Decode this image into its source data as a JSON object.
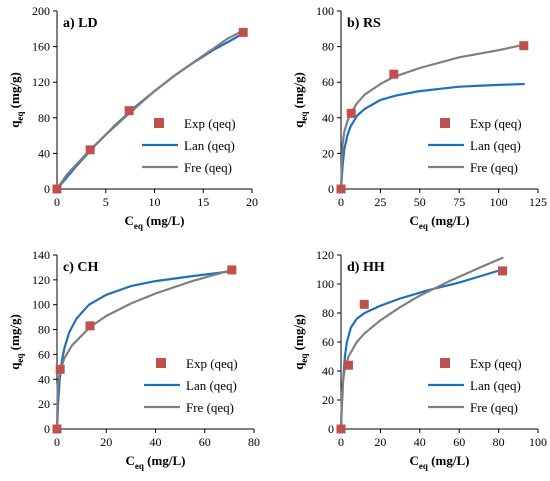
{
  "chart_data": [
    {
      "type": "scatter",
      "title": "a) LD",
      "xlabel_base": "C",
      "xlabel_sub": "eq",
      "xlabel_unit": " (mg/L)",
      "ylabel_base": "q",
      "ylabel_sub": "eq",
      "ylabel_unit": " (mg/g)",
      "xlim": [
        0,
        20
      ],
      "xticks": [
        0,
        5,
        10,
        15,
        20
      ],
      "ylim": [
        0,
        200
      ],
      "yticks": [
        0,
        40,
        80,
        120,
        160,
        200
      ],
      "grid": false,
      "legend_position": "bottom-right",
      "series": [
        {
          "name": "Exp (qeq)",
          "kind": "markers",
          "color": "#c0504d",
          "x": [
            0,
            3.4,
            7.4,
            19.1
          ],
          "y": [
            0,
            44,
            88,
            176
          ]
        },
        {
          "name": "Lan (qeq)",
          "kind": "line",
          "color": "#1f6fbf",
          "x": [
            0,
            2,
            4,
            6,
            8,
            10,
            12,
            14,
            16,
            18,
            19.1
          ],
          "y": [
            0,
            26,
            50,
            72,
            92,
            110,
            127,
            142,
            156,
            168,
            175
          ]
        },
        {
          "name": "Fre (qeq)",
          "kind": "line",
          "color": "#7f7f7f",
          "x": [
            0,
            1,
            3.4,
            5,
            7.4,
            10,
            12.5,
            15,
            17.5,
            19.1
          ],
          "y": [
            0,
            16,
            44,
            61,
            85,
            110,
            131,
            150,
            169,
            178
          ]
        }
      ]
    },
    {
      "type": "scatter",
      "title": "b) RS",
      "xlabel_base": "C",
      "xlabel_sub": "eq",
      "xlabel_unit": " (mg/L)",
      "ylabel_base": "q",
      "ylabel_sub": "eq",
      "ylabel_unit": " (mg/g)",
      "xlim": [
        0,
        125
      ],
      "xticks": [
        0,
        25,
        50,
        75,
        100,
        125
      ],
      "ylim": [
        0,
        100
      ],
      "yticks": [
        0,
        20,
        40,
        60,
        80,
        100
      ],
      "grid": false,
      "legend_position": "bottom-right",
      "series": [
        {
          "name": "Exp (qeq)",
          "kind": "markers",
          "color": "#c0504d",
          "x": [
            0,
            6.5,
            33.5,
            116
          ],
          "y": [
            0,
            42.5,
            64.5,
            80.5
          ]
        },
        {
          "name": "Lan (qeq)",
          "kind": "line",
          "color": "#1f6fbf",
          "x": [
            0,
            1,
            2,
            4,
            6,
            10,
            15,
            25,
            35,
            50,
            75,
            100,
            116
          ],
          "y": [
            0,
            13,
            22,
            30,
            35,
            41,
            45,
            50,
            52.5,
            55,
            57.5,
            58.5,
            59
          ]
        },
        {
          "name": "Fre (qeq)",
          "kind": "line",
          "color": "#7f7f7f",
          "x": [
            0,
            1,
            2,
            4,
            6.5,
            10,
            15,
            25,
            33.5,
            50,
            75,
            100,
            116
          ],
          "y": [
            0,
            25,
            32,
            38,
            43,
            48,
            53,
            59,
            63,
            68,
            74,
            78,
            81
          ]
        }
      ]
    },
    {
      "type": "scatter",
      "title": "c) CH",
      "xlabel_base": "C",
      "xlabel_sub": "eq",
      "xlabel_unit": " (mg/L)",
      "ylabel_base": "q",
      "ylabel_sub": "eq",
      "ylabel_unit": " (mg/g)",
      "xlim": [
        0,
        80
      ],
      "xticks": [
        0,
        20,
        40,
        60,
        80
      ],
      "ylim": [
        0,
        140
      ],
      "yticks": [
        0,
        20,
        40,
        60,
        80,
        100,
        120,
        140
      ],
      "grid": false,
      "legend_position": "bottom-right",
      "series": [
        {
          "name": "Exp (qeq)",
          "kind": "markers",
          "color": "#c0504d",
          "x": [
            0,
            1.3,
            13.4,
            71
          ],
          "y": [
            0,
            48,
            83,
            128
          ]
        },
        {
          "name": "Lan (qeq)",
          "kind": "line",
          "color": "#1f6fbf",
          "x": [
            0,
            0.5,
            1,
            2,
            3,
            5,
            8,
            13,
            20,
            30,
            40,
            55,
            71
          ],
          "y": [
            0,
            22,
            38,
            55,
            65,
            78,
            89,
            100,
            108,
            115,
            119,
            123,
            127
          ]
        },
        {
          "name": "Fre (qeq)",
          "kind": "line",
          "color": "#7f7f7f",
          "x": [
            0,
            0.3,
            1.3,
            3,
            6,
            13.4,
            20,
            30,
            40,
            55,
            71
          ],
          "y": [
            0,
            35,
            47,
            57,
            67,
            82,
            91,
            101,
            109,
            119,
            128
          ]
        }
      ]
    },
    {
      "type": "scatter",
      "title": "d) HH",
      "xlabel_base": "C",
      "xlabel_sub": "eq",
      "xlabel_unit": " (mg/L)",
      "ylabel_base": "q",
      "ylabel_sub": "eq",
      "ylabel_unit": " (mg/g)",
      "xlim": [
        0,
        100
      ],
      "xticks": [
        0,
        20,
        40,
        60,
        80,
        100
      ],
      "ylim": [
        0,
        120
      ],
      "yticks": [
        0,
        20,
        40,
        60,
        80,
        100,
        120
      ],
      "grid": false,
      "legend_position": "bottom-right",
      "series": [
        {
          "name": "Exp (qeq)",
          "kind": "markers",
          "color": "#c0504d",
          "x": [
            0,
            3.8,
            11.8,
            82
          ],
          "y": [
            0,
            44,
            86,
            109
          ]
        },
        {
          "name": "Lan (qeq)",
          "kind": "line",
          "color": "#1f6fbf",
          "x": [
            0,
            0.5,
            1,
            2,
            3,
            5,
            8,
            12,
            20,
            30,
            45,
            60,
            82
          ],
          "y": [
            0,
            18,
            32,
            50,
            60,
            70,
            76,
            80,
            85,
            90,
            96,
            101,
            110
          ]
        },
        {
          "name": "Fre (qeq)",
          "kind": "line",
          "color": "#7f7f7f",
          "x": [
            0,
            0.5,
            1,
            2,
            3.8,
            8,
            12,
            20,
            30,
            40,
            55,
            70,
            82
          ],
          "y": [
            0,
            25,
            33,
            42,
            50,
            60,
            66,
            75,
            84,
            92,
            102,
            111,
            118
          ]
        }
      ]
    }
  ]
}
